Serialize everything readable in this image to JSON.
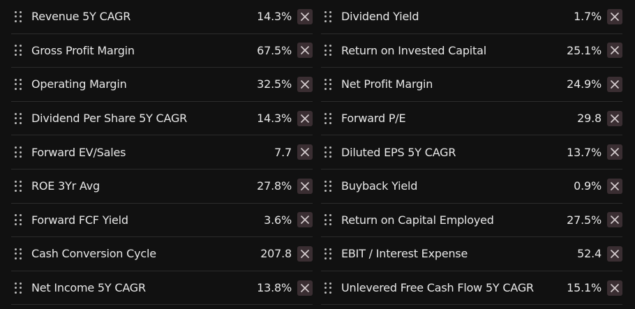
{
  "colors": {
    "background": "#111111",
    "text": "#e8e8e8",
    "remove_button_bg": "#3a2e32",
    "remove_icon": "#d8d0d2",
    "divider": "#2c2c2c"
  },
  "icons": {
    "drag": "drag-handle-icon",
    "remove": "close-icon"
  },
  "metrics": {
    "left": [
      {
        "label": "Revenue 5Y CAGR",
        "value": "14.3%"
      },
      {
        "label": "Gross Profit Margin",
        "value": "67.5%"
      },
      {
        "label": "Operating Margin",
        "value": "32.5%"
      },
      {
        "label": "Dividend Per Share 5Y CAGR",
        "value": "14.3%"
      },
      {
        "label": "Forward EV/Sales",
        "value": "7.7"
      },
      {
        "label": "ROE 3Yr Avg",
        "value": "27.8%"
      },
      {
        "label": "Forward FCF Yield",
        "value": "3.6%"
      },
      {
        "label": "Cash Conversion Cycle",
        "value": "207.8"
      },
      {
        "label": "Net Income 5Y CAGR",
        "value": "13.8%"
      }
    ],
    "right": [
      {
        "label": "Dividend Yield",
        "value": "1.7%"
      },
      {
        "label": "Return on Invested Capital",
        "value": "25.1%"
      },
      {
        "label": "Net Profit Margin",
        "value": "24.9%"
      },
      {
        "label": "Forward P/E",
        "value": "29.8"
      },
      {
        "label": "Diluted EPS 5Y CAGR",
        "value": "13.7%"
      },
      {
        "label": "Buyback Yield",
        "value": "0.9%"
      },
      {
        "label": "Return on Capital Employed",
        "value": "27.5%"
      },
      {
        "label": "EBIT / Interest Expense",
        "value": "52.4"
      },
      {
        "label": "Unlevered Free Cash Flow 5Y CAGR",
        "value": "15.1%"
      }
    ]
  }
}
